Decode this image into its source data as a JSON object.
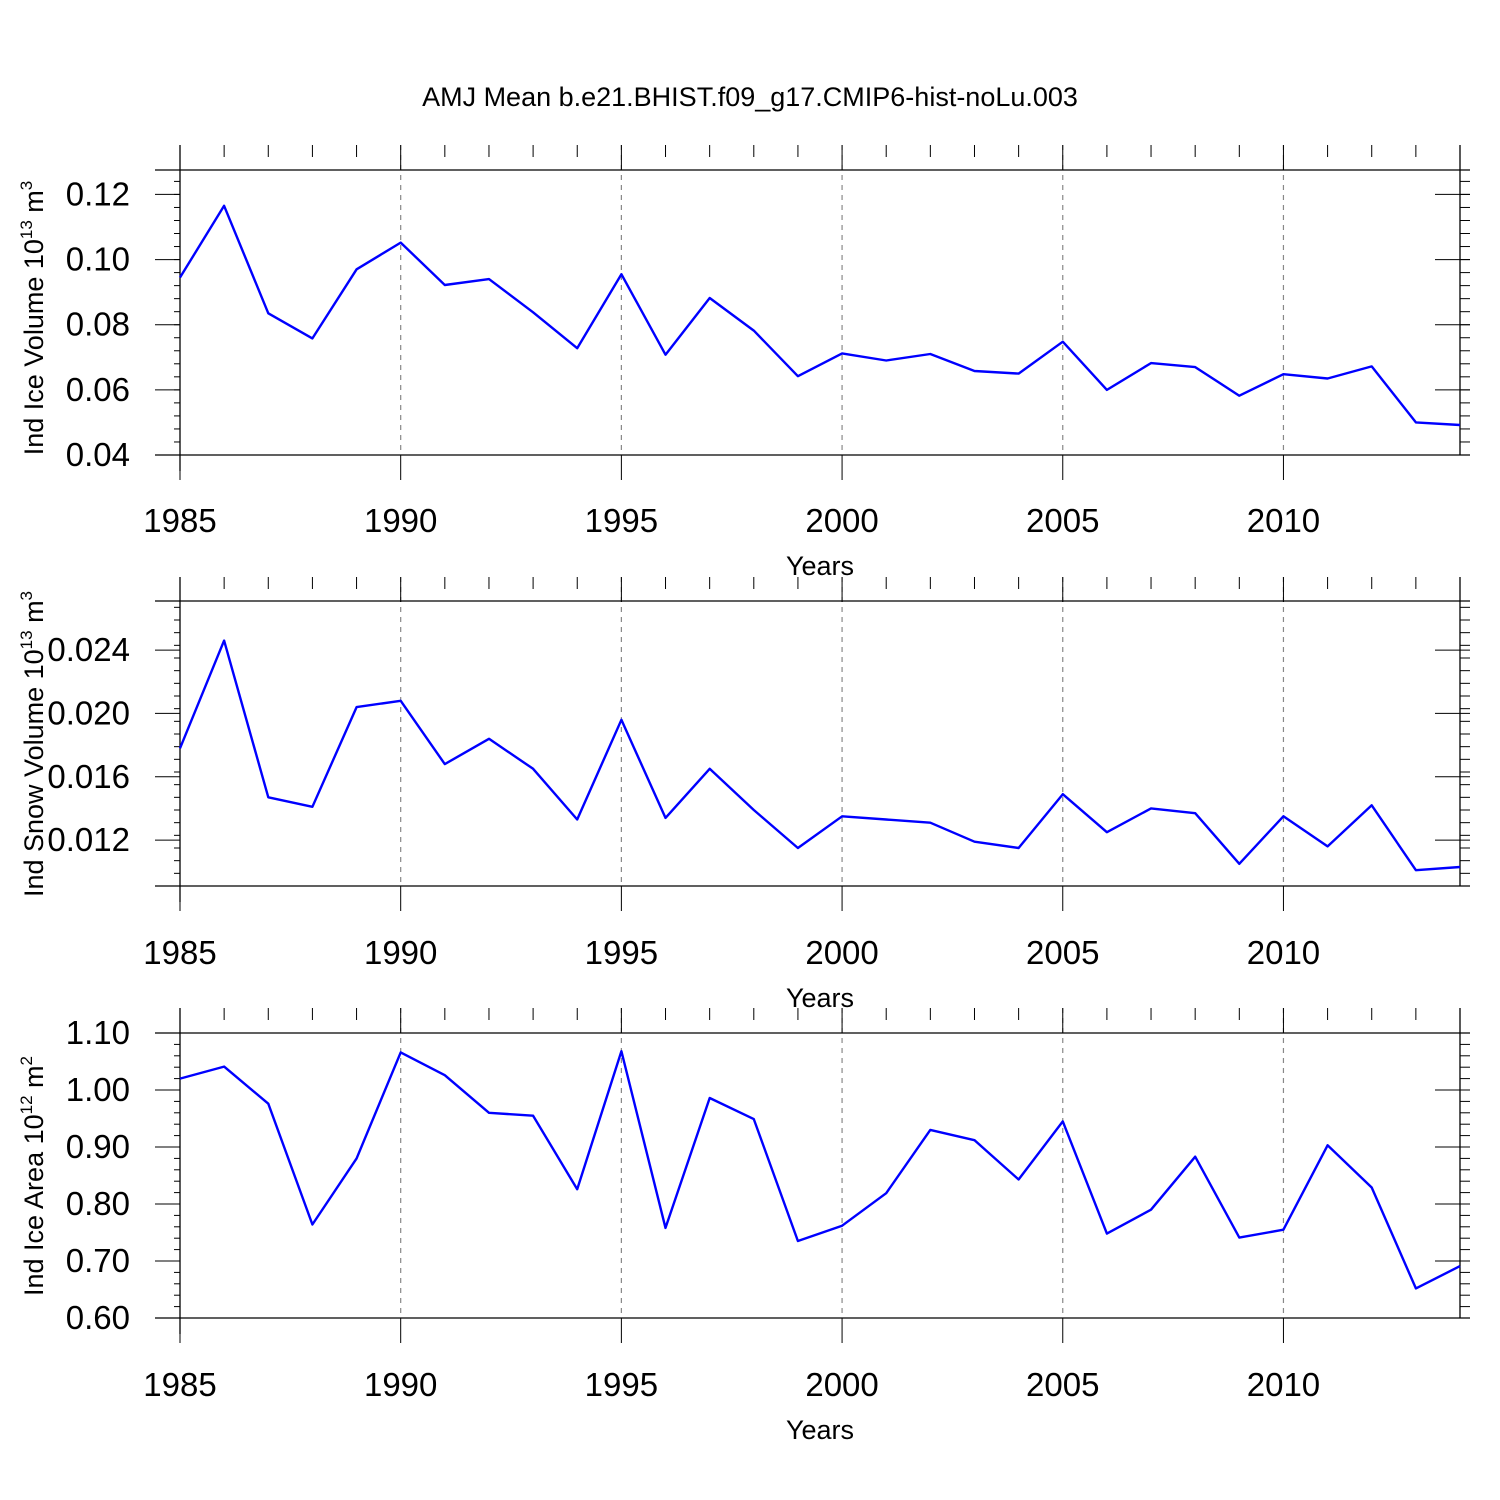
{
  "title": "AMJ Mean b.e21.BHIST.f09_g17.CMIP6-hist-noLu.003",
  "line_color": "#0000ff",
  "chart_data": [
    {
      "type": "line",
      "ylabel": "Ind Ice Volume 10",
      "ylabel_exp": "13",
      "ylabel_unit": " m",
      "ylabel_unit_exp": "3",
      "xlabel": "Years",
      "xlim": [
        1985,
        2014
      ],
      "ylim": [
        0.04,
        0.1275
      ],
      "xticks": [
        1985,
        1990,
        1995,
        2000,
        2005,
        2010
      ],
      "yticks": [
        0.04,
        0.06,
        0.08,
        0.1,
        0.12
      ],
      "ytick_labels": [
        "0.04",
        "0.06",
        "0.08",
        "0.10",
        "0.12"
      ],
      "x": [
        1985,
        1986,
        1987,
        1988,
        1989,
        1990,
        1991,
        1992,
        1993,
        1994,
        1995,
        1996,
        1997,
        1998,
        1999,
        2000,
        2001,
        2002,
        2003,
        2004,
        2005,
        2006,
        2007,
        2008,
        2009,
        2010,
        2011,
        2012,
        2013,
        2014
      ],
      "series": [
        {
          "values": [
            0.0945,
            0.1165,
            0.0835,
            0.0758,
            0.097,
            0.1052,
            0.0922,
            0.094,
            0.0838,
            0.0728,
            0.0955,
            0.0708,
            0.0882,
            0.0782,
            0.0642,
            0.0712,
            0.069,
            0.071,
            0.0658,
            0.065,
            0.0748,
            0.06,
            0.0682,
            0.067,
            0.0582,
            0.0648,
            0.0635,
            0.0672,
            0.05,
            0.0492
          ]
        }
      ]
    },
    {
      "type": "line",
      "ylabel": "Ind Snow Volume 10",
      "ylabel_exp": "13",
      "ylabel_unit": " m",
      "ylabel_unit_exp": "3",
      "xlabel": "Years",
      "xlim": [
        1985,
        2014
      ],
      "ylim": [
        0.0091,
        0.0271
      ],
      "xticks": [
        1985,
        1990,
        1995,
        2000,
        2005,
        2010
      ],
      "yticks": [
        0.012,
        0.016,
        0.02,
        0.024
      ],
      "ytick_labels": [
        "0.012",
        "0.016",
        "0.020",
        "0.024"
      ],
      "x": [
        1985,
        1986,
        1987,
        1988,
        1989,
        1990,
        1991,
        1992,
        1993,
        1994,
        1995,
        1996,
        1997,
        1998,
        1999,
        2000,
        2001,
        2002,
        2003,
        2004,
        2005,
        2006,
        2007,
        2008,
        2009,
        2010,
        2011,
        2012,
        2013,
        2014
      ],
      "series": [
        {
          "values": [
            0.0178,
            0.0246,
            0.0147,
            0.0141,
            0.0204,
            0.0208,
            0.0168,
            0.0184,
            0.0165,
            0.0133,
            0.0196,
            0.0134,
            0.0165,
            0.0139,
            0.0115,
            0.0135,
            0.0133,
            0.0131,
            0.0119,
            0.0115,
            0.0149,
            0.0125,
            0.014,
            0.0137,
            0.0105,
            0.0135,
            0.0116,
            0.0142,
            0.0101,
            0.0103
          ]
        }
      ]
    },
    {
      "type": "line",
      "ylabel": "Ind Ice Area 10",
      "ylabel_exp": "12",
      "ylabel_unit": " m",
      "ylabel_unit_exp": "2",
      "xlabel": "Years",
      "xlim": [
        1985,
        2014
      ],
      "ylim": [
        0.6,
        1.1
      ],
      "xticks": [
        1985,
        1990,
        1995,
        2000,
        2005,
        2010
      ],
      "yticks": [
        0.6,
        0.7,
        0.8,
        0.9,
        1.0,
        1.1
      ],
      "ytick_labels": [
        "0.60",
        "0.70",
        "0.80",
        "0.90",
        "1.00",
        "1.10"
      ],
      "x": [
        1985,
        1986,
        1987,
        1988,
        1989,
        1990,
        1991,
        1992,
        1993,
        1994,
        1995,
        1996,
        1997,
        1998,
        1999,
        2000,
        2001,
        2002,
        2003,
        2004,
        2005,
        2006,
        2007,
        2008,
        2009,
        2010,
        2011,
        2012,
        2013,
        2014
      ],
      "series": [
        {
          "values": [
            1.02,
            1.041,
            0.976,
            0.764,
            0.88,
            1.066,
            1.026,
            0.96,
            0.955,
            0.826,
            1.068,
            0.758,
            0.986,
            0.949,
            0.735,
            0.762,
            0.819,
            0.93,
            0.912,
            0.843,
            0.945,
            0.748,
            0.79,
            0.883,
            0.741,
            0.755,
            0.903,
            0.829,
            0.652,
            0.691
          ]
        }
      ]
    }
  ]
}
